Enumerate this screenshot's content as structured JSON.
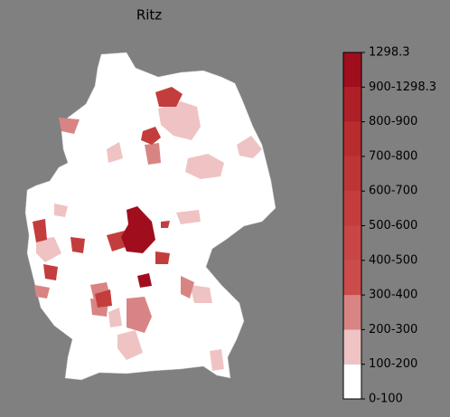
{
  "title": "Ritz",
  "legend": {
    "labels": [
      "0-100",
      "100-200",
      "200-300",
      "300-400",
      "400-500",
      "500-600",
      "600-700",
      "700-800",
      "800-900",
      "900-1298.3",
      "1298.3"
    ],
    "colors": [
      "#ffffff",
      "#efc3c3",
      "#d98484",
      "#cc4b4b",
      "#c94646",
      "#c43d3d",
      "#be3535",
      "#b82c2e",
      "#ae1f27",
      "#a00e1e"
    ]
  }
}
